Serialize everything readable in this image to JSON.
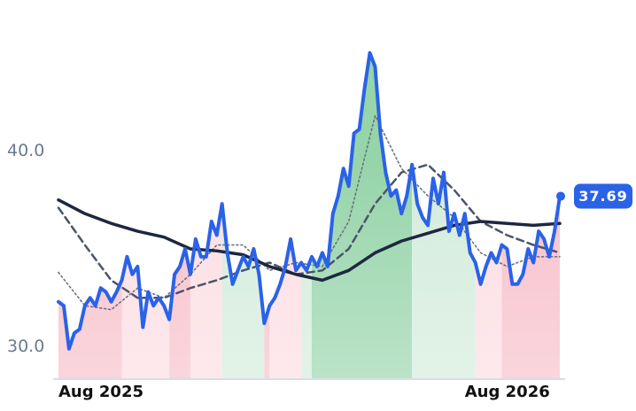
{
  "chart_data": {
    "type": "line",
    "categories": [
      "Aug 2025",
      null,
      null,
      null,
      null,
      null,
      null,
      null,
      null,
      null,
      null,
      null,
      null,
      null,
      null,
      null,
      null,
      null,
      null,
      null,
      null,
      null,
      null,
      null,
      null,
      null,
      null,
      null,
      null,
      null,
      null,
      null,
      null,
      null,
      null,
      null,
      null,
      null,
      null,
      null,
      null,
      null,
      null,
      null,
      null,
      null,
      null,
      null,
      null,
      null,
      null,
      null,
      null,
      null,
      null,
      null,
      null,
      null,
      null,
      null,
      null,
      null,
      null,
      null,
      null,
      null,
      null,
      null,
      null,
      null,
      null,
      null,
      null,
      null,
      null,
      null,
      null,
      "Aug 2026",
      null,
      null,
      null,
      null,
      null,
      null,
      null,
      null,
      null,
      null,
      null,
      null,
      null,
      null,
      null,
      null,
      null,
      null
    ],
    "series": [
      {
        "color": "#2a62e8",
        "dash": "solid",
        "width": 4,
        "values": [
          32.3,
          32.1,
          29.9,
          30.7,
          30.9,
          32.1,
          32.5,
          32.1,
          33.0,
          32.8,
          32.3,
          32.8,
          33.4,
          34.6,
          33.7,
          34.1,
          31.0,
          32.8,
          32.1,
          32.5,
          32.1,
          31.4,
          33.7,
          34.1,
          35.0,
          33.7,
          35.5,
          34.6,
          34.6,
          36.4,
          35.7,
          37.3,
          34.8,
          33.2,
          33.9,
          34.6,
          34.1,
          35.0,
          33.7,
          31.2,
          32.1,
          32.5,
          33.2,
          34.1,
          35.5,
          33.9,
          34.3,
          33.9,
          34.6,
          34.1,
          34.8,
          34.1,
          36.8,
          37.7,
          39.1,
          38.2,
          40.9,
          41.1,
          43.2,
          45.0,
          44.3,
          40.9,
          38.9,
          37.7,
          38.0,
          36.8,
          37.7,
          39.3,
          37.3,
          36.6,
          36.2,
          38.6,
          37.3,
          38.9,
          35.9,
          36.8,
          35.7,
          36.8,
          34.8,
          34.3,
          33.2,
          34.1,
          34.8,
          34.3,
          35.2,
          35.0,
          33.2,
          33.2,
          33.7,
          35.0,
          34.3,
          35.9,
          35.5,
          34.6,
          35.9,
          37.69
        ]
      },
      {
        "color": "#1e2740",
        "dash": "solid",
        "width": 3.5,
        "x": [
          0,
          5,
          10,
          15,
          20,
          25,
          30,
          35,
          40,
          45,
          50,
          55,
          60,
          65,
          70,
          75,
          80,
          85,
          90,
          95
        ],
        "values": [
          37.5,
          36.8,
          36.3,
          35.9,
          35.6,
          35.0,
          34.9,
          34.7,
          34.1,
          33.7,
          33.4,
          33.9,
          34.8,
          35.4,
          35.8,
          36.2,
          36.4,
          36.3,
          36.2,
          36.3
        ]
      },
      {
        "color": "#4a5568",
        "dash": "dashed",
        "width": 2.5,
        "x": [
          0,
          5,
          10,
          15,
          20,
          25,
          30,
          35,
          40,
          45,
          50,
          55,
          60,
          65,
          70,
          75,
          80,
          85,
          90,
          95
        ],
        "values": [
          37.1,
          35.2,
          33.4,
          32.5,
          32.5,
          33.0,
          33.4,
          33.9,
          34.3,
          33.7,
          33.9,
          35.0,
          37.3,
          38.9,
          39.3,
          38.0,
          36.4,
          35.7,
          35.2,
          34.8
        ]
      },
      {
        "color": "#6b7280",
        "dash": "dotted",
        "width": 1.6,
        "x": [
          0,
          5,
          10,
          15,
          20,
          25,
          30,
          35,
          40,
          45,
          50,
          55,
          60,
          65,
          70,
          75,
          80,
          85,
          90,
          95
        ],
        "values": [
          33.8,
          32.1,
          31.9,
          33.0,
          32.5,
          33.7,
          35.2,
          35.2,
          33.9,
          34.3,
          34.1,
          36.4,
          41.8,
          39.1,
          37.7,
          36.6,
          34.8,
          34.1,
          34.6,
          34.6
        ]
      }
    ],
    "bands": [
      {
        "from": 0,
        "to": 12,
        "color": "#f7bfca"
      },
      {
        "from": 12,
        "to": 21,
        "color": "#fcdde3"
      },
      {
        "from": 21,
        "to": 25,
        "color": "#f7bfca"
      },
      {
        "from": 25,
        "to": 31,
        "color": "#fcdde3"
      },
      {
        "from": 31,
        "to": 39,
        "color": "#d3ecdb"
      },
      {
        "from": 39,
        "to": 40,
        "color": "#f7bfca"
      },
      {
        "from": 40,
        "to": 46,
        "color": "#fcdde3"
      },
      {
        "from": 46,
        "to": 48,
        "color": "#d3ecdb"
      },
      {
        "from": 48,
        "to": 67,
        "color": "#96d4aa"
      },
      {
        "from": 67,
        "to": 79,
        "color": "#d3ecdb"
      },
      {
        "from": 79,
        "to": 84,
        "color": "#fcdde3"
      },
      {
        "from": 84,
        "to": 95,
        "color": "#f7bfca"
      }
    ],
    "ylim": [
      28.4,
      47.7
    ],
    "yticks": [
      {
        "value": 30,
        "label": "30.0"
      },
      {
        "value": 40,
        "label": "40.0"
      }
    ],
    "grid": false,
    "last_label_color": "#2a62e8"
  }
}
